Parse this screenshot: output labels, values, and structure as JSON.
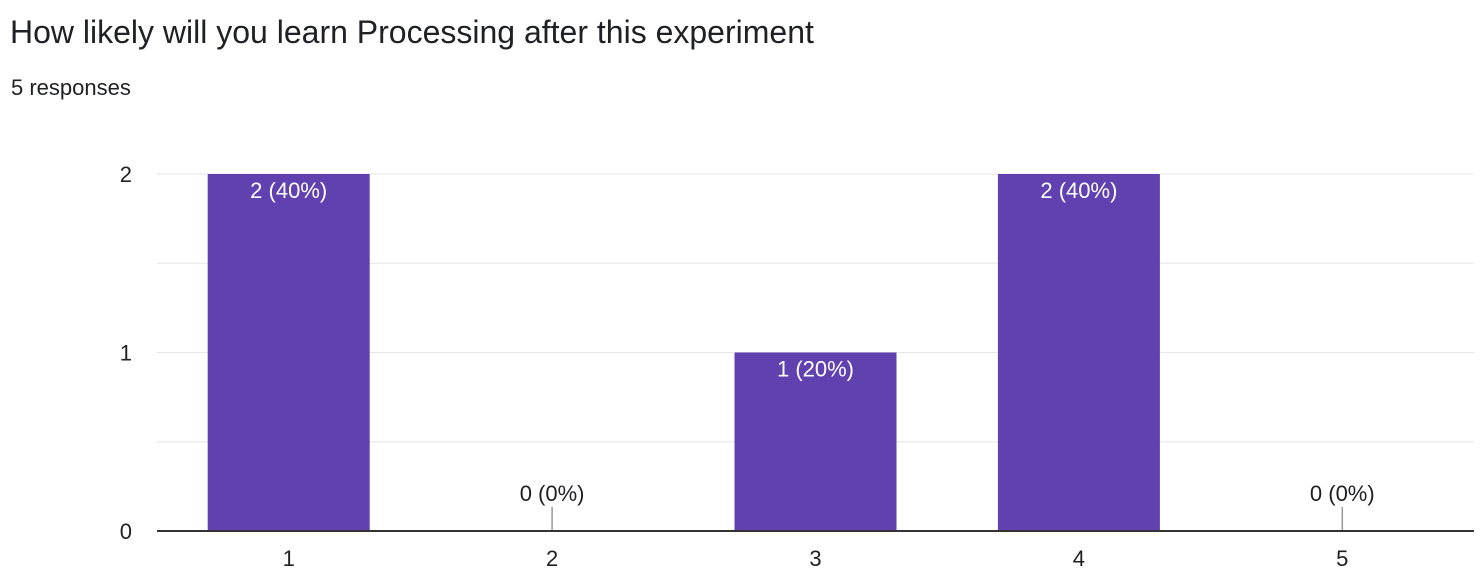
{
  "question": {
    "title": "How likely will you learn Processing after this experiment",
    "responses": "5 responses"
  },
  "colors": {
    "bar": "#6140b0",
    "grid": "#e6e6e6",
    "axis": "#333333",
    "text": "#202124",
    "bar_label": "#ffffff"
  },
  "chart_data": {
    "type": "bar",
    "title": "How likely will you learn Processing after this experiment",
    "xlabel": "",
    "ylabel": "",
    "categories": [
      "1",
      "2",
      "3",
      "4",
      "5"
    ],
    "values": [
      2,
      0,
      1,
      2,
      0
    ],
    "data_labels": [
      "2 (40%)",
      "0 (0%)",
      "1 (20%)",
      "2 (40%)",
      "0 (0%)"
    ],
    "ylim": [
      0,
      2
    ],
    "y_ticks": [
      "0",
      "1",
      "2"
    ],
    "grid": true,
    "legend": "none"
  }
}
